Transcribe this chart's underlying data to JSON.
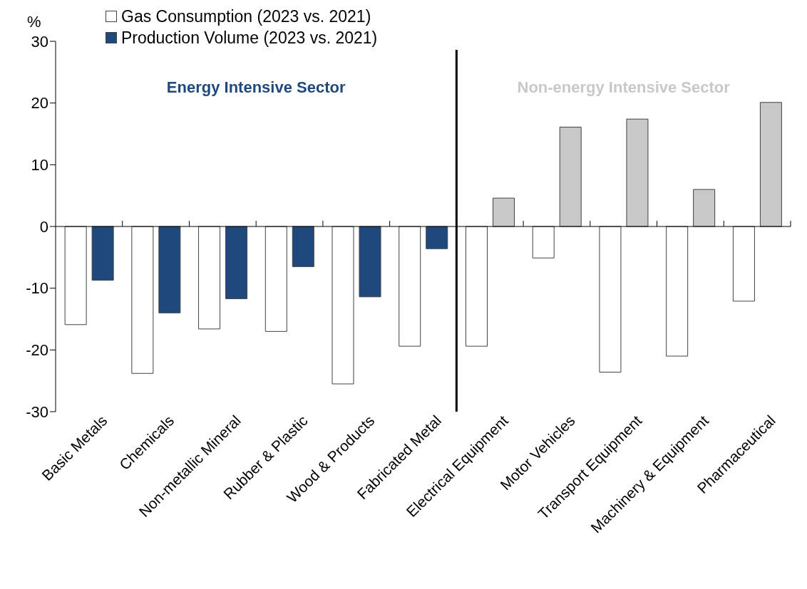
{
  "chart_data": {
    "type": "bar",
    "ylabel": "%",
    "categories": [
      "Basic Metals",
      "Chemicals",
      "Non-metallic Mineral",
      "Rubber & Plastic",
      "Wood & Products",
      "Fabricated Metal",
      "Electrical Equipment",
      "Motor Vehicles",
      "Transport Equipment",
      "Machinery & Equipment",
      "Pharmaceutical"
    ],
    "series": [
      {
        "name": "Gas Consumption (2023 vs. 2021)",
        "color": "#ffffff",
        "values": [
          -15.9,
          -23.8,
          -16.6,
          -17.0,
          -25.5,
          -19.4,
          -19.4,
          -5.1,
          -23.6,
          -21.0,
          -12.1
        ]
      },
      {
        "name": "Production Volume (2023 vs. 2021)",
        "color": "#1f497d",
        "colors": [
          "#1f497d",
          "#1f497d",
          "#1f497d",
          "#1f497d",
          "#1f497d",
          "#1f497d",
          "#c8c8c8",
          "#c8c8c8",
          "#c8c8c8",
          "#c8c8c8",
          "#c8c8c8"
        ],
        "values": [
          -8.7,
          -14.0,
          -11.7,
          -6.5,
          -11.4,
          -3.6,
          4.6,
          16.1,
          17.4,
          6.0,
          20.1
        ]
      }
    ],
    "ylim": [
      -30,
      30
    ],
    "yticks": [
      -30,
      -20,
      -10,
      0,
      10,
      20,
      30
    ],
    "annotations": [
      "Energy Intensive Sector",
      "Non-energy Intensive Sector"
    ],
    "legend": "top left"
  }
}
